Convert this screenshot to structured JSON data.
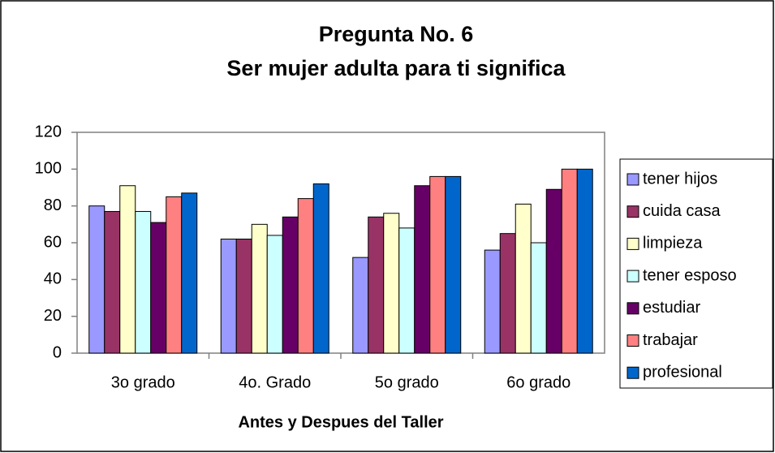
{
  "chart_data": {
    "type": "bar",
    "title": "Pregunta No. 6",
    "subtitle": "Ser mujer adulta para ti significa",
    "x_label": "Antes y Despues del Taller",
    "categories": [
      "3o grado",
      "4o. Grado",
      "5o grado",
      "6o grado"
    ],
    "series": [
      {
        "name": "tener hijos",
        "color": "#9999ff",
        "values": [
          80,
          62,
          52,
          56
        ]
      },
      {
        "name": "cuida casa",
        "color": "#993366",
        "values": [
          77,
          62,
          74,
          65
        ]
      },
      {
        "name": "limpieza",
        "color": "#ffffcc",
        "values": [
          91,
          70,
          76,
          81
        ]
      },
      {
        "name": "tener esposo",
        "color": "#ccffff",
        "values": [
          77,
          64,
          68,
          60
        ]
      },
      {
        "name": "estudiar",
        "color": "#660066",
        "values": [
          71,
          74,
          91,
          89
        ]
      },
      {
        "name": "trabajar",
        "color": "#ff8080",
        "values": [
          85,
          84,
          96,
          100
        ]
      },
      {
        "name": "profesional",
        "color": "#0066cc",
        "values": [
          87,
          92,
          96,
          100
        ]
      }
    ],
    "ylim": [
      0,
      120
    ],
    "yticks": [
      0,
      20,
      40,
      60,
      80,
      100,
      120
    ],
    "grid": false,
    "legend": "right"
  }
}
